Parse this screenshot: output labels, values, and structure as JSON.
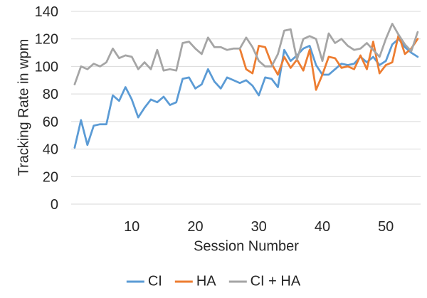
{
  "chart_data": {
    "type": "line",
    "xlabel": "Session Number",
    "ylabel": "Tracking Rate in wpm",
    "x": [
      1,
      2,
      3,
      4,
      5,
      6,
      7,
      8,
      9,
      10,
      11,
      12,
      13,
      14,
      15,
      16,
      17,
      18,
      19,
      20,
      21,
      22,
      23,
      24,
      25,
      26,
      27,
      28,
      29,
      30,
      31,
      32,
      33,
      34,
      35,
      36,
      37,
      38,
      39,
      40,
      41,
      42,
      43,
      44,
      45,
      46,
      47,
      48,
      49,
      50,
      51,
      52,
      53,
      54,
      55
    ],
    "ylim": [
      0,
      140
    ],
    "yticks": [
      0,
      20,
      40,
      60,
      80,
      100,
      120,
      140
    ],
    "xticks": [
      10,
      20,
      30,
      40,
      50
    ],
    "grid": "horizontal",
    "gridline_color": "#D9D9D9",
    "text_color": "#262626",
    "legend_position": "bottom",
    "series": [
      {
        "name": "CI",
        "color": "#5B9BD5",
        "values": [
          41,
          61,
          43,
          57,
          58,
          58,
          79,
          75,
          85,
          76,
          63,
          70,
          76,
          74,
          78,
          72,
          74,
          91,
          92,
          84,
          87,
          98,
          89,
          84,
          92,
          90,
          88,
          90,
          86,
          79,
          92,
          91,
          85,
          112,
          104,
          108,
          113,
          115,
          101,
          94,
          94,
          98,
          102,
          101,
          102,
          107,
          103,
          107,
          101,
          104,
          116,
          120,
          114,
          110,
          107
        ]
      },
      {
        "name": "HA",
        "color": "#ED7D31",
        "values": [
          null,
          null,
          null,
          null,
          null,
          null,
          null,
          null,
          null,
          null,
          null,
          null,
          null,
          null,
          null,
          null,
          null,
          null,
          null,
          null,
          null,
          null,
          null,
          null,
          null,
          null,
          113,
          98,
          95,
          115,
          114,
          102,
          94,
          107,
          99,
          105,
          97,
          112,
          83,
          94,
          107,
          106,
          99,
          100,
          98,
          108,
          98,
          118,
          95,
          101,
          103,
          123,
          109,
          113,
          120
        ]
      },
      {
        "name": "CI + HA",
        "color": "#A5A5A5",
        "values": [
          87,
          100,
          98,
          102,
          100,
          103,
          113,
          106,
          108,
          107,
          98,
          103,
          98,
          112,
          97,
          98,
          97,
          117,
          118,
          113,
          109,
          121,
          114,
          114,
          112,
          113,
          113,
          121,
          114,
          104,
          100,
          100,
          109,
          126,
          127,
          105,
          120,
          122,
          120,
          104,
          124,
          117,
          120,
          115,
          112,
          113,
          117,
          112,
          107,
          120,
          131,
          123,
          116,
          111,
          125
        ]
      }
    ]
  }
}
